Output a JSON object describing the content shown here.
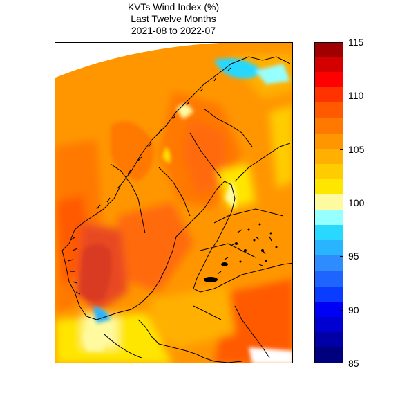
{
  "title": {
    "line1": "KVTs Wind Index (%)",
    "line2": "Last Twelve Months",
    "line3": "2021-08 to 2022-07"
  },
  "colorbar": {
    "min": 85,
    "max": 115,
    "step": 1.5,
    "tick_labels": [
      "115",
      "110",
      "105",
      "100",
      "95",
      "90",
      "85"
    ],
    "tick_values": [
      115,
      110,
      105,
      100,
      95,
      90,
      85
    ],
    "colors": [
      "#00007f",
      "#0000a6",
      "#0000d0",
      "#0000f6",
      "#0a3cff",
      "#1e64ff",
      "#2f8cff",
      "#28b4ff",
      "#28d8ff",
      "#96ffff",
      "#fffaa0",
      "#ffe600",
      "#ffcc00",
      "#ffb000",
      "#ff9600",
      "#ff7800",
      "#ff5a00",
      "#ff3200",
      "#ff0000",
      "#d40000",
      "#a00000"
    ]
  },
  "map": {
    "region": "Scandinavia / Nordic",
    "palette": {
      "sea_dominant": "#ff9600",
      "sea_west": "#ff7800",
      "mountain_high": "#e84820",
      "inland_low": "#ffcc00",
      "coast_low": "#28b4ff",
      "south_east": "#ff5a00",
      "coastline": "#000000"
    }
  }
}
